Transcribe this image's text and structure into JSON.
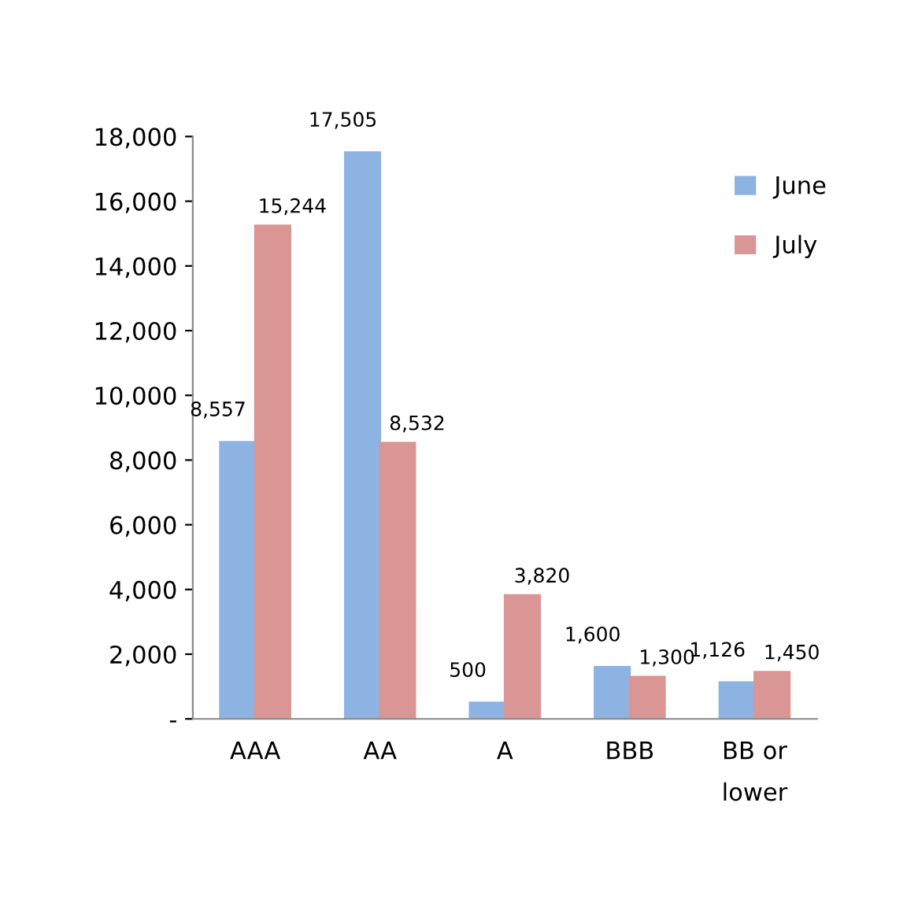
{
  "chart_data": {
    "type": "bar",
    "categories": [
      "AAA",
      "AA",
      "A",
      "BBB",
      "BB or\nlower"
    ],
    "series": [
      {
        "name": "June",
        "color": "#8db3e2",
        "values": [
          8557,
          17505,
          500,
          1600,
          1126
        ],
        "value_labels": [
          "8,557",
          "17,505",
          "500",
          "1,600",
          "1,126"
        ]
      },
      {
        "name": "July",
        "color": "#d99694",
        "values": [
          15244,
          8532,
          3820,
          1300,
          1450
        ],
        "value_labels": [
          "15,244",
          "8,532",
          "3,820",
          "1,300",
          "1,450"
        ]
      }
    ],
    "ylim": [
      0,
      18000
    ],
    "yticks": [
      {
        "value": 0,
        "label": "-"
      },
      {
        "value": 2000,
        "label": "2,000"
      },
      {
        "value": 4000,
        "label": "4,000"
      },
      {
        "value": 6000,
        "label": "6,000"
      },
      {
        "value": 8000,
        "label": "8,000"
      },
      {
        "value": 10000,
        "label": "10,000"
      },
      {
        "value": 12000,
        "label": "12,000"
      },
      {
        "value": 14000,
        "label": "14,000"
      },
      {
        "value": 16000,
        "label": "16,000"
      },
      {
        "value": 18000,
        "label": "18,000"
      }
    ],
    "grid": false,
    "legend": "top right"
  }
}
